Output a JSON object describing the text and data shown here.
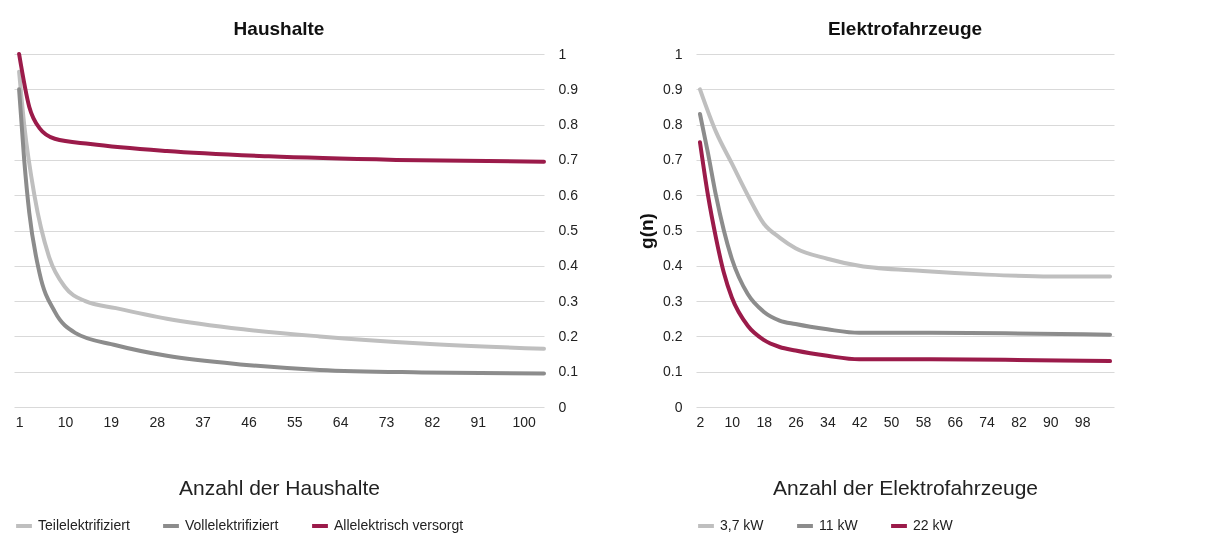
{
  "chart_data": [
    {
      "type": "line",
      "title": "Haushalte",
      "xlabel": "Anzahl der Haushalte",
      "xlim": [
        0,
        104
      ],
      "xticks": [
        1,
        10,
        19,
        28,
        37,
        46,
        55,
        64,
        73,
        82,
        91,
        100
      ],
      "ylim": [
        0,
        1
      ],
      "yticks": [
        0,
        0.1,
        0.2,
        0.3,
        0.4,
        0.5,
        0.6,
        0.7,
        0.8,
        0.9,
        1
      ],
      "grid": "y",
      "legend": "bottom",
      "series": [
        {
          "name": "Teilelektrifiziert",
          "color": "#bfbfbf",
          "x": [
            1,
            2,
            4,
            7,
            10,
            14,
            20,
            30,
            45,
            60,
            80,
            104
          ],
          "values": [
            0.95,
            0.8,
            0.6,
            0.42,
            0.34,
            0.3,
            0.28,
            0.25,
            0.22,
            0.2,
            0.18,
            0.165
          ]
        },
        {
          "name": "Vollelektrifiziert",
          "color": "#8c8c8c",
          "x": [
            1,
            2,
            3,
            5,
            8,
            12,
            20,
            30,
            45,
            60,
            80,
            104
          ],
          "values": [
            0.9,
            0.7,
            0.55,
            0.38,
            0.27,
            0.21,
            0.175,
            0.145,
            0.12,
            0.105,
            0.098,
            0.095
          ]
        },
        {
          "name": "Allelektrisch versorgt",
          "color": "#9b1b4a",
          "x": [
            1,
            3,
            5,
            8,
            15,
            30,
            50,
            75,
            104
          ],
          "values": [
            1,
            0.85,
            0.79,
            0.76,
            0.745,
            0.725,
            0.71,
            0.7,
            0.695
          ]
        }
      ]
    },
    {
      "type": "line",
      "title": "Elektrofahrzeuge",
      "xlabel": "Anzahl der Elektrofahrzeuge",
      "ylabel": "g(n)",
      "xlim": [
        1,
        106
      ],
      "xticks": [
        2,
        10,
        18,
        26,
        34,
        42,
        50,
        58,
        66,
        74,
        82,
        90,
        98
      ],
      "ylim": [
        0,
        1
      ],
      "yticks": [
        0,
        0.1,
        0.2,
        0.3,
        0.4,
        0.5,
        0.6,
        0.7,
        0.8,
        0.9,
        1
      ],
      "grid": "y",
      "legend": "bottom",
      "series": [
        {
          "name": "3,7 kW",
          "color": "#bfbfbf",
          "x": [
            2,
            6,
            10,
            14,
            18,
            22,
            26,
            34,
            42,
            58,
            74,
            90,
            105
          ],
          "values": [
            0.9,
            0.78,
            0.69,
            0.6,
            0.52,
            0.48,
            0.45,
            0.42,
            0.4,
            0.385,
            0.375,
            0.37,
            0.37
          ]
        },
        {
          "name": "11 kW",
          "color": "#8c8c8c",
          "x": [
            2,
            4,
            6,
            8,
            10,
            14,
            18,
            22,
            26,
            34,
            42,
            60,
            105
          ],
          "values": [
            0.83,
            0.72,
            0.6,
            0.5,
            0.42,
            0.32,
            0.27,
            0.245,
            0.235,
            0.22,
            0.21,
            0.21,
            0.205
          ]
        },
        {
          "name": "22 kW",
          "color": "#9b1b4a",
          "x": [
            2,
            4,
            6,
            8,
            10,
            14,
            18,
            22,
            26,
            34,
            42,
            60,
            105
          ],
          "values": [
            0.75,
            0.6,
            0.48,
            0.38,
            0.31,
            0.23,
            0.19,
            0.17,
            0.16,
            0.145,
            0.135,
            0.135,
            0.13
          ]
        }
      ]
    }
  ]
}
